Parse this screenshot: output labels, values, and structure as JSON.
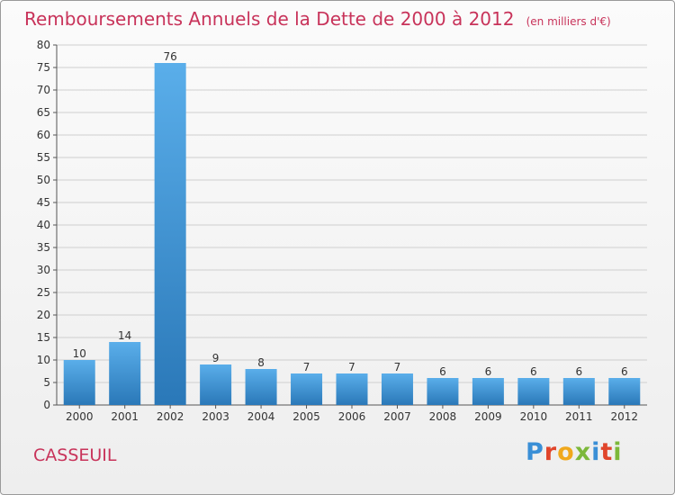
{
  "header": {
    "title": "Remboursements Annuels de la Dette de 2000 à 2012",
    "subtitle": "(en milliers d'€)"
  },
  "footer": {
    "commune": "CASSEUIL",
    "brand": "Proxiti",
    "brand_colors": [
      "#3a8fd6",
      "#e0452b",
      "#f0a81c",
      "#7cb83a",
      "#3a8fd6",
      "#e0452b",
      "#7cb83a"
    ]
  },
  "chart_data": {
    "type": "bar",
    "categories": [
      "2000",
      "2001",
      "2002",
      "2003",
      "2004",
      "2005",
      "2006",
      "2007",
      "2008",
      "2009",
      "2010",
      "2011",
      "2012"
    ],
    "values": [
      10,
      14,
      76,
      9,
      8,
      7,
      7,
      7,
      6,
      6,
      6,
      6,
      6
    ],
    "data_labels": [
      "10",
      "14",
      "76",
      "9",
      "8",
      "7",
      "7",
      "7",
      "6",
      "6",
      "6",
      "6",
      "6"
    ],
    "yticks": [
      0,
      5,
      10,
      15,
      20,
      25,
      30,
      35,
      40,
      45,
      50,
      55,
      60,
      65,
      70,
      75,
      80
    ],
    "ylim": [
      0,
      80
    ],
    "grid": true,
    "bar_color_top": "#5aaeea",
    "bar_color_bottom": "#2a78b8"
  }
}
